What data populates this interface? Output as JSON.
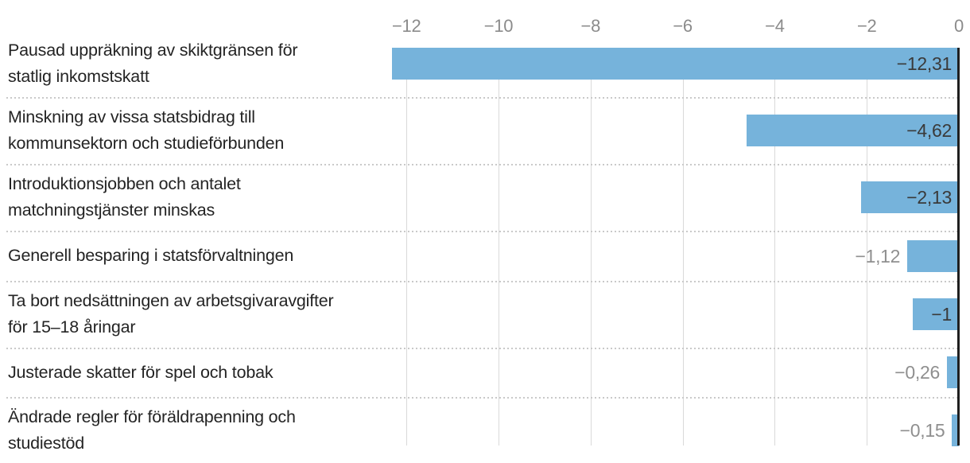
{
  "chart_data": {
    "type": "bar",
    "orientation": "horizontal",
    "title": "",
    "xlabel": "",
    "ylabel": "",
    "axis_range": [
      -12.31,
      0
    ],
    "grid": "vertical solid gridlines; dotted horizontal row separators; dark zero axis at right",
    "legend": "none",
    "x_ticks": [
      {
        "value": -12,
        "label": "−12"
      },
      {
        "value": -10,
        "label": "−10"
      },
      {
        "value": -8,
        "label": "−8"
      },
      {
        "value": -6,
        "label": "−6"
      },
      {
        "value": -4,
        "label": "−4"
      },
      {
        "value": -2,
        "label": "−2"
      },
      {
        "value": 0,
        "label": "0"
      }
    ],
    "categories": [
      "Pausad uppräkning av skiktgränsen för statlig inkomstskatt",
      "Minskning av vissa statsbidrag till kommunsektorn och studieförbunden",
      "Introduktionsjobben och antalet matchningstjänster minskas",
      "Generell besparing i statsförvaltningen",
      "Ta bort nedsättningen av arbetsgivaravgifter för 15–18 åringar",
      "Justerade skatter för spel och tobak",
      "Ändrade regler för föräldrapenning och studiestöd"
    ],
    "category_lines": [
      [
        "Pausad uppräkning av skiktgränsen för",
        "statlig inkomstskatt"
      ],
      [
        "Minskning av vissa statsbidrag till",
        "kommunsektorn och studieförbunden"
      ],
      [
        "Introduktionsjobben och antalet",
        "matchningstjänster minskas"
      ],
      [
        "Generell besparing i statsförvaltningen"
      ],
      [
        "Ta bort nedsättningen av arbetsgivaravgifter",
        "för 15–18 åringar"
      ],
      [
        "Justerade skatter för spel och tobak"
      ],
      [
        "Ändrade regler för föräldrapenning och",
        "studiestöd"
      ]
    ],
    "values": [
      -12.31,
      -4.62,
      -2.13,
      -1.12,
      -1,
      -0.26,
      -0.15
    ],
    "value_labels": [
      "−12,31",
      "−4,62",
      "−2,13",
      "−1,12",
      "−1",
      "−0,26",
      "−0,15"
    ],
    "colors": {
      "bar": "#76b3db",
      "value_label_inside": "#3a3a3a",
      "value_label_outside": "#8f8f8f",
      "tick_label": "#8b8b8b",
      "category_label": "#242424",
      "gridline": "#d9d9d9",
      "separator_dots": "#c9c9c9",
      "zero_line": "#1f1f1f",
      "background": "#ffffff"
    }
  }
}
